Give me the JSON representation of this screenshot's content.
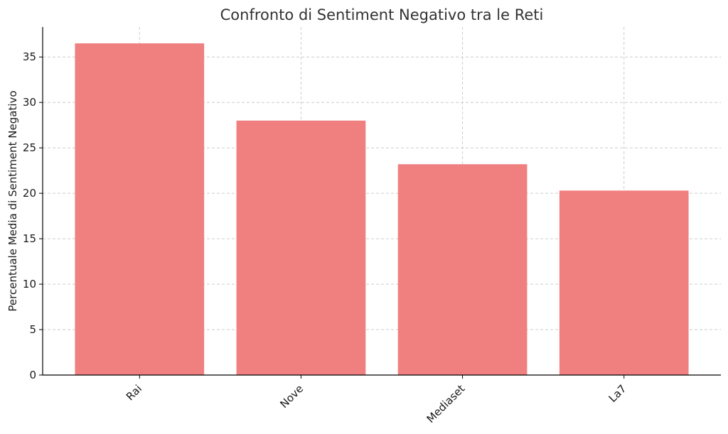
{
  "chart_data": {
    "type": "bar",
    "title": "Confronto di Sentiment Negativo tra le Reti",
    "xlabel": "",
    "ylabel": "Percentuale Media di Sentiment Negativo",
    "categories": [
      "Rai",
      "Nove",
      "Mediaset",
      "La7"
    ],
    "values": [
      36.5,
      28.0,
      23.2,
      20.3
    ],
    "ylim": [
      0,
      38.3
    ],
    "yticks": [
      0,
      5,
      10,
      15,
      20,
      25,
      30,
      35
    ],
    "grid": true,
    "bar_color": "#f08080"
  }
}
